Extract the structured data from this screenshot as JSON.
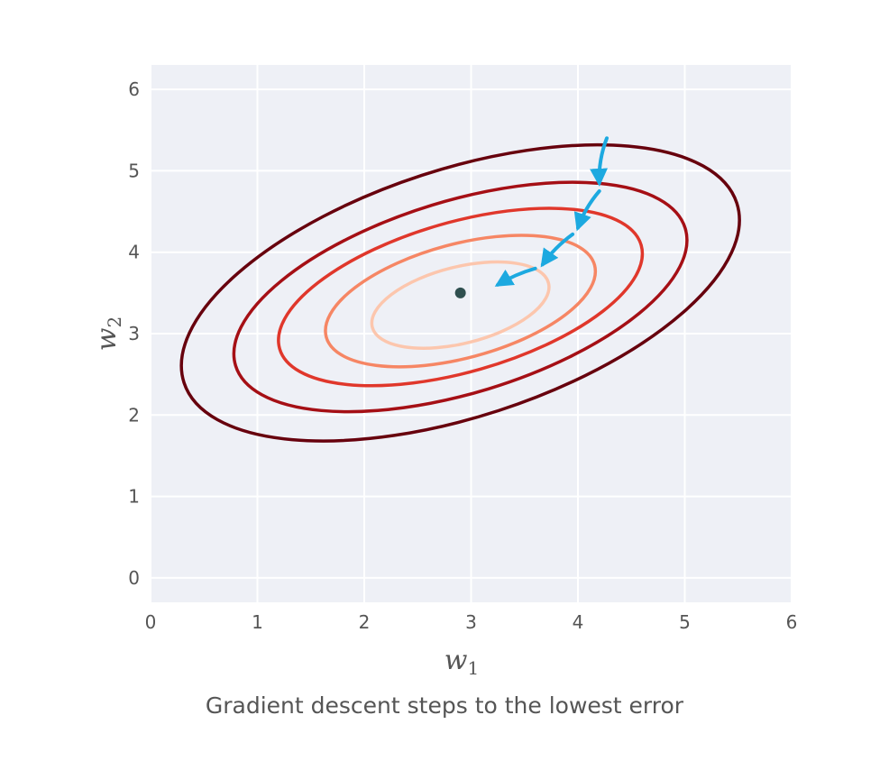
{
  "chart_data": {
    "type": "contour",
    "caption": "Gradient descent steps to the lowest error",
    "xlabel": "w",
    "xlabel_sub": "1",
    "ylabel": "w",
    "ylabel_sub": "2",
    "xlim": [
      0,
      6
    ],
    "ylim": [
      -0.3,
      6.3
    ],
    "xticks": [
      0,
      1,
      2,
      3,
      4,
      5,
      6
    ],
    "yticks": [
      0,
      1,
      2,
      3,
      4,
      5,
      6
    ],
    "grid": true,
    "minimum": {
      "x": 2.9,
      "y": 3.5
    },
    "contours": [
      {
        "cx": 2.9,
        "cy": 3.5,
        "rx": 2.72,
        "ry": 1.52,
        "angle_deg": 18,
        "color": "#67000d"
      },
      {
        "cx": 2.9,
        "cy": 3.45,
        "rx": 2.2,
        "ry": 1.18,
        "angle_deg": 17,
        "color": "#a50f15"
      },
      {
        "cx": 2.9,
        "cy": 3.45,
        "rx": 1.76,
        "ry": 0.92,
        "angle_deg": 16,
        "color": "#e0372b"
      },
      {
        "cx": 2.9,
        "cy": 3.4,
        "rx": 1.3,
        "ry": 0.7,
        "angle_deg": 15,
        "color": "#f68664"
      },
      {
        "cx": 2.9,
        "cy": 3.35,
        "rx": 0.85,
        "ry": 0.47,
        "angle_deg": 14,
        "color": "#fcc6ad"
      }
    ],
    "steps": {
      "color": "#1ca9e0",
      "points": [
        {
          "x": 4.27,
          "y": 5.4
        },
        {
          "x": 4.2,
          "y": 4.85
        },
        {
          "x": 4.2,
          "y": 4.75
        },
        {
          "x": 4.0,
          "y": 4.3
        },
        {
          "x": 3.95,
          "y": 4.22
        },
        {
          "x": 3.67,
          "y": 3.85
        },
        {
          "x": 3.6,
          "y": 3.8
        },
        {
          "x": 3.25,
          "y": 3.6
        }
      ]
    }
  }
}
